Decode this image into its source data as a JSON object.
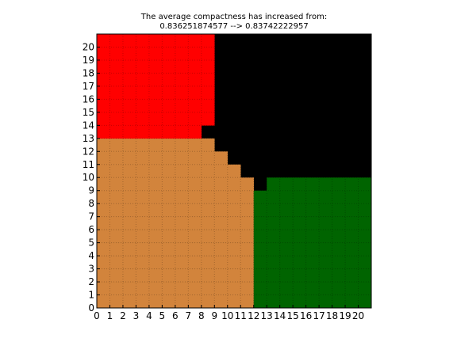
{
  "chart_data": {
    "type": "heatmap",
    "title_line1": "The average compactness has increased from:",
    "title_line2": "0.836251874577 --> 0.83742222957",
    "grid_size": 21,
    "x_ticks": [
      "0",
      "1",
      "2",
      "3",
      "4",
      "5",
      "6",
      "7",
      "8",
      "9",
      "10",
      "11",
      "12",
      "13",
      "14",
      "15",
      "16",
      "17",
      "18",
      "19",
      "20"
    ],
    "y_ticks": [
      "0",
      "1",
      "2",
      "3",
      "4",
      "5",
      "6",
      "7",
      "8",
      "9",
      "10",
      "11",
      "12",
      "13",
      "14",
      "15",
      "16",
      "17",
      "18",
      "19",
      "20"
    ],
    "grid": true,
    "colors": {
      "red": "#ff0000",
      "black": "#000000",
      "orange": "#d2843c",
      "green": "#006400"
    },
    "regions": [
      {
        "color": "red",
        "x_end_by_row": {
          "13": 8,
          "14": 9,
          "15": 9,
          "16": 9,
          "17": 9,
          "18": 9,
          "19": 9,
          "20": 9,
          "21": 9
        }
      },
      {
        "color": "orange",
        "x_end_by_row": {
          "0": 12,
          "1": 12,
          "2": 12,
          "3": 12,
          "4": 12,
          "5": 12,
          "6": 12,
          "7": 12,
          "8": 12,
          "9": 12,
          "10": 11,
          "11": 10,
          "12": 9
        }
      },
      {
        "color": "green",
        "x_start_by_row": {
          "0": 12,
          "1": 12,
          "2": 12,
          "3": 12,
          "4": 12,
          "5": 12,
          "6": 12,
          "7": 12,
          "8": 12,
          "9": 13
        }
      }
    ]
  }
}
